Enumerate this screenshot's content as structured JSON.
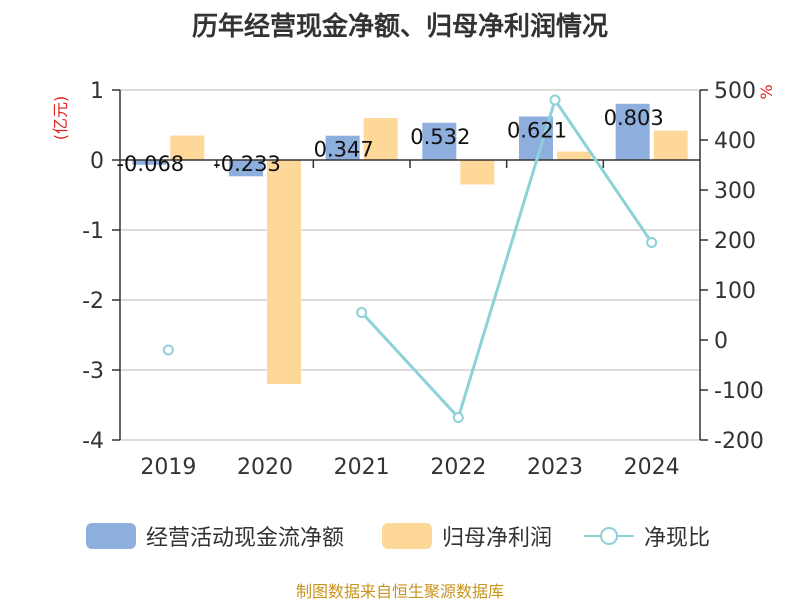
{
  "title": "历年经营现金净额、归母净利润情况",
  "source_text": "制图数据来自恒生聚源数据库",
  "colors": {
    "cash_flow": "#8eaedd",
    "net_profit": "#fdd899",
    "ratio": "#8dd2d8",
    "unit": "#e02020",
    "axis": "#333333",
    "grid": "#d0d0d0"
  },
  "chart_data": {
    "type": "bar",
    "categories": [
      "2019",
      "2020",
      "2021",
      "2022",
      "2023",
      "2024"
    ],
    "left_axis": {
      "unit": "(亿元)",
      "ylim": [
        -4,
        1
      ],
      "ticks": [
        1,
        0,
        -1,
        -2,
        -3,
        -4
      ]
    },
    "right_axis": {
      "unit": "%",
      "ylim": [
        -200,
        500
      ],
      "ticks": [
        500,
        400,
        300,
        200,
        100,
        0,
        -100,
        -200
      ]
    },
    "grid": true,
    "legend_position": "bottom",
    "series": [
      {
        "name": "经营活动现金流净额",
        "type": "bar",
        "axis": "left",
        "values": [
          -0.068,
          -0.233,
          0.347,
          0.532,
          0.621,
          0.803
        ],
        "labels": [
          "-0.068",
          "-0.233",
          "0.347",
          "0.532",
          "0.621",
          "0.803"
        ]
      },
      {
        "name": "归母净利润",
        "type": "bar",
        "axis": "left",
        "values": [
          0.35,
          -3.2,
          0.6,
          -0.35,
          0.12,
          0.42
        ]
      },
      {
        "name": "净现比",
        "type": "line",
        "axis": "right",
        "values": [
          -20,
          null,
          55,
          -155,
          480,
          195
        ]
      }
    ]
  }
}
